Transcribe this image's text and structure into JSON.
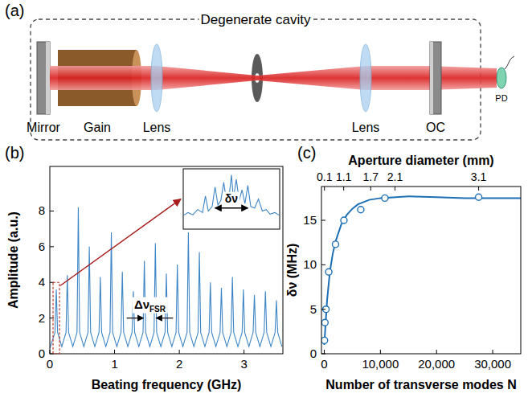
{
  "diagram": {
    "panel_label": "(a)",
    "title": "Degenerate cavity",
    "components": {
      "mirror": "Mirror",
      "gain": "Gain",
      "lens_1": "Lens",
      "lens_2": "Lens",
      "output_coupler": "OC",
      "detector": "PD"
    }
  },
  "chart_data": [
    {
      "panel_label": "(b)",
      "type": "line",
      "xlabel": "Beating frequency (GHz)",
      "ylabel": "Amplitude (a.u.)",
      "xlim": [
        0,
        3.6
      ],
      "ylim": [
        0,
        10.5
      ],
      "xticks": [
        0,
        1,
        2,
        3
      ],
      "yticks": [
        0,
        2,
        4,
        6,
        8
      ],
      "color": "#3f86c6",
      "series": [
        {
          "x": [
            0,
            0.08,
            0.1,
            0.12,
            0.185,
            0.25,
            0.27,
            0.29,
            0.355,
            0.42,
            0.44,
            0.46,
            0.525,
            0.59,
            0.61,
            0.63,
            0.695,
            0.76,
            0.78,
            0.8,
            0.865,
            0.93,
            0.95,
            0.97,
            1.035,
            1.1,
            1.12,
            1.14,
            1.205,
            1.27,
            1.29,
            1.31,
            1.375,
            1.44,
            1.46,
            1.48,
            1.545,
            1.61,
            1.63,
            1.65,
            1.715,
            1.78,
            1.8,
            1.82,
            1.885,
            1.95,
            1.97,
            1.99,
            2.055,
            2.12,
            2.14,
            2.16,
            2.225,
            2.29,
            2.31,
            2.33,
            2.395,
            2.46,
            2.48,
            2.5,
            2.565,
            2.63,
            2.65,
            2.67,
            2.735,
            2.8,
            2.82,
            2.84,
            2.905,
            2.97,
            2.99,
            3.01,
            3.075,
            3.14,
            3.16,
            3.18,
            3.245,
            3.31,
            3.33,
            3.35,
            3.415,
            3.48,
            3.5,
            3.52,
            3.585
          ],
          "values": [
            0.3,
            1.2,
            3.6,
            1.2,
            0.4,
            1.2,
            4.4,
            1.2,
            0.4,
            1.2,
            8.2,
            1.2,
            0.4,
            1.2,
            6.0,
            1.2,
            0.4,
            1.2,
            4.3,
            1.2,
            0.4,
            1.2,
            6.8,
            1.2,
            0.4,
            1.2,
            4.6,
            1.2,
            0.4,
            1.2,
            3.5,
            1.2,
            0.4,
            1.2,
            5.2,
            1.2,
            0.4,
            1.2,
            6.2,
            1.2,
            0.4,
            1.2,
            4.5,
            1.2,
            0.4,
            1.2,
            5.0,
            1.2,
            0.4,
            1.2,
            6.8,
            1.2,
            0.4,
            1.2,
            5.7,
            1.2,
            0.4,
            1.2,
            4.0,
            1.2,
            0.4,
            1.2,
            3.7,
            1.2,
            0.4,
            1.2,
            4.3,
            1.2,
            0.4,
            1.2,
            3.6,
            1.2,
            0.4,
            1.2,
            3.3,
            1.2,
            0.4,
            1.2,
            3.5,
            1.2,
            0.4,
            1.2,
            3.0,
            1.2,
            0.4
          ]
        }
      ],
      "annotations": [
        {
          "text": "Δν",
          "subscript": "FSR",
          "x": [
            1.46,
            1.63
          ],
          "y": 2.0
        }
      ]
    },
    {
      "type": "line",
      "tick_labels": false,
      "xlim": [
        0.05,
        0.15
      ],
      "ylim": [
        0,
        4
      ],
      "color": "#3f86c6",
      "series": [
        {
          "x": [
            0.05,
            0.055,
            0.06,
            0.065,
            0.07,
            0.073,
            0.076,
            0.08,
            0.083,
            0.086,
            0.089,
            0.092,
            0.095,
            0.098,
            0.1,
            0.102,
            0.105,
            0.108,
            0.111,
            0.114,
            0.117,
            0.12,
            0.124,
            0.128,
            0.132,
            0.136,
            0.14,
            0.145,
            0.15
          ],
          "values": [
            0.9,
            1.1,
            0.95,
            1.3,
            1.1,
            2.2,
            1.2,
            1.5,
            2.8,
            1.6,
            1.9,
            3.1,
            1.8,
            2.4,
            3.6,
            2.0,
            3.3,
            1.9,
            2.6,
            1.7,
            2.9,
            1.5,
            1.4,
            2.0,
            1.2,
            1.3,
            1.0,
            1.1,
            0.9
          ]
        }
      ],
      "annotations": [
        {
          "text": "δν",
          "x": [
            0.083,
            0.117
          ],
          "y": 1.4
        }
      ]
    },
    {
      "panel_label": "(c)",
      "type": "scatter",
      "xlabel": "Number of transverse modes N",
      "x2label": "Aperture diameter (mm)",
      "ylabel": "δν (MHz)",
      "xlim": [
        -500,
        35000
      ],
      "ylim": [
        0,
        18.8
      ],
      "xticks": [
        0,
        {
          "value": 10000,
          "label": "10,000"
        },
        {
          "value": 20000,
          "label": "20,000"
        },
        {
          "value": 30000,
          "label": "30,000"
        }
      ],
      "yticks": [
        0,
        5,
        10,
        15
      ],
      "x2ticks": [
        0.1,
        1.1,
        1.7,
        2.1,
        3.1
      ],
      "x2tick_modes": [
        29,
        3460,
        8270,
        12600,
        27500
      ],
      "color": "#1f6fb5",
      "series": [
        {
          "type": "scatter",
          "marker": "circle",
          "x": [
            30,
            120,
            300,
            800,
            2000,
            3500,
            6500,
            10800,
            27500
          ],
          "values": [
            1.5,
            3.5,
            5.0,
            9.2,
            12.3,
            15.0,
            16.2,
            17.5,
            17.6
          ]
        },
        {
          "type": "line",
          "line_style": "solid",
          "x": [
            0,
            500,
            1000,
            1500,
            2000,
            3000,
            4000,
            5000,
            6000,
            8000,
            10000,
            15000,
            20000,
            25000,
            30000,
            35000
          ],
          "values": [
            1.0,
            6.0,
            9.2,
            11.2,
            12.6,
            14.5,
            15.6,
            16.3,
            16.8,
            17.3,
            17.5,
            17.7,
            17.6,
            17.5,
            17.5,
            17.5
          ]
        }
      ]
    }
  ]
}
